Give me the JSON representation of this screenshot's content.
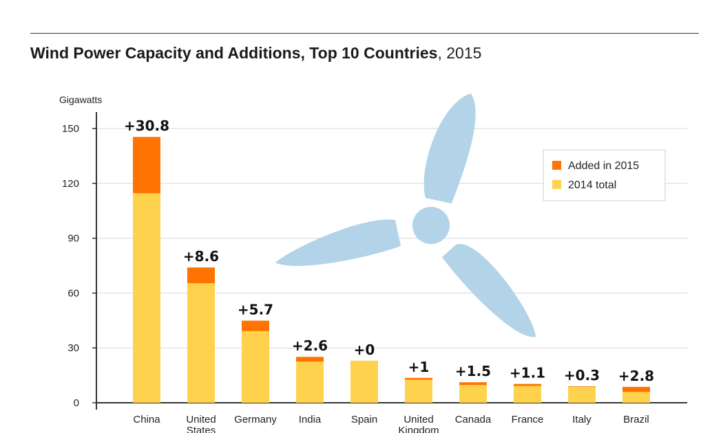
{
  "title": {
    "main": "Wind Power Capacity and Additions, Top 10 Countries",
    "year": ", 2015"
  },
  "colors": {
    "added": "#ff7300",
    "base": "#ffd24d",
    "turbine": "#b3d3e8",
    "grid": "#d9d9d9",
    "axis": "#333333"
  },
  "icons": {
    "background": "wind-turbine-icon"
  },
  "chart_data": {
    "type": "bar",
    "stacked": true,
    "ylabel": "Gigawatts",
    "ylim": [
      0,
      150
    ],
    "yticks": [
      "0",
      "30",
      "60",
      "90",
      "120",
      "150"
    ],
    "grid": true,
    "legend_position": "top-right",
    "categories": [
      [
        "China"
      ],
      [
        "United",
        "States"
      ],
      [
        "Germany"
      ],
      [
        "India"
      ],
      [
        "Spain"
      ],
      [
        "United",
        "Kingdom"
      ],
      [
        "Canada"
      ],
      [
        "France"
      ],
      [
        "Italy"
      ],
      [
        "Brazil"
      ]
    ],
    "series": [
      {
        "name": "2014 total",
        "values": [
          114.6,
          65.4,
          39.2,
          22.5,
          23.0,
          12.6,
          9.7,
          9.2,
          8.7,
          5.9
        ]
      },
      {
        "name": "Added in 2015",
        "values": [
          30.8,
          8.6,
          5.7,
          2.6,
          0,
          1,
          1.5,
          1.1,
          0.3,
          2.8
        ]
      }
    ],
    "data_labels": [
      "+30.8",
      "+8.6",
      "+5.7",
      "+2.6",
      "+0",
      "+1",
      "+1.5",
      "+1.1",
      "+0.3",
      "+2.8"
    ],
    "legend": [
      "Added in 2015",
      "2014 total"
    ]
  }
}
